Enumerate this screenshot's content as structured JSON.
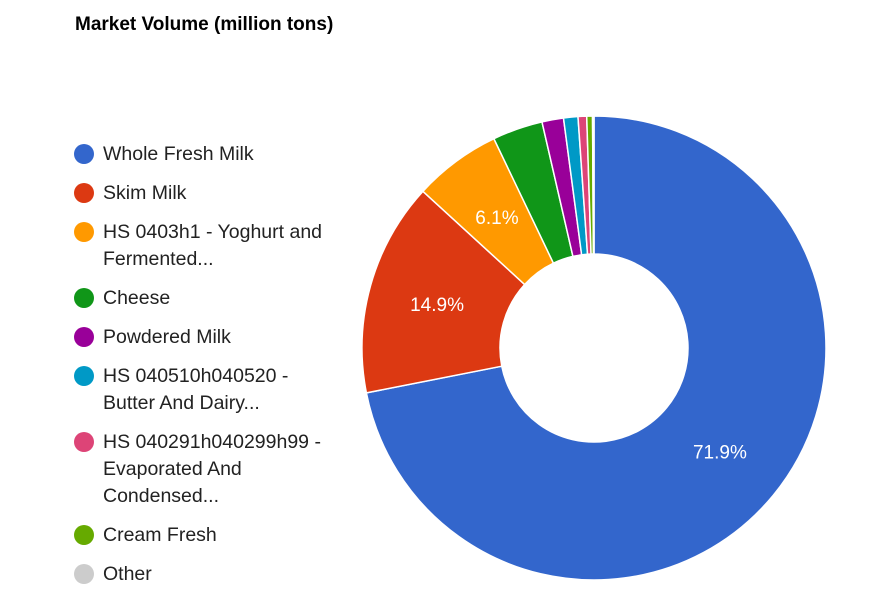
{
  "chart_data": {
    "type": "pie",
    "donut": true,
    "title": "Market Volume (million tons)",
    "legend_position": "left",
    "categories": [
      "Whole Fresh Milk",
      "Skim Milk",
      "HS 0403h1 - Yoghurt and Fermented...",
      "Cheese",
      "Powdered Milk",
      "HS 040510h040520 - Butter And Dairy...",
      "HS 040291h040299h99 - Evaporated And Condensed...",
      "Cream Fresh",
      "Other"
    ],
    "values": [
      71.9,
      14.9,
      6.1,
      3.5,
      1.5,
      1.0,
      0.6,
      0.4,
      0.1
    ],
    "value_labels": [
      "71.9%",
      "14.9%",
      "6.1%",
      "",
      "",
      "",
      "",
      "",
      ""
    ],
    "colors": [
      "#3366cc",
      "#dc3912",
      "#ff9900",
      "#109618",
      "#990099",
      "#0099c6",
      "#dd4477",
      "#66aa00",
      "#cccccc"
    ]
  }
}
